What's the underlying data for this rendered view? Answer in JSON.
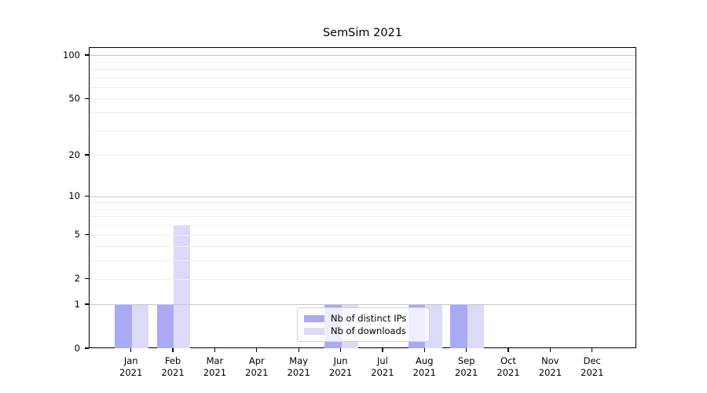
{
  "title": "SemSim 2021",
  "chart_data": {
    "type": "bar",
    "title": "SemSim 2021",
    "categories": [
      "Jan",
      "Feb",
      "Mar",
      "Apr",
      "May",
      "Jun",
      "Jul",
      "Aug",
      "Sep",
      "Oct",
      "Nov",
      "Dec"
    ],
    "category_subline": "2021",
    "series": [
      {
        "name": "Nb of distinct IPs",
        "color": "#a9a9f4",
        "values": [
          1,
          1,
          0,
          0,
          0,
          1,
          0,
          1,
          1,
          0,
          0,
          0
        ]
      },
      {
        "name": "Nb of downloads",
        "color": "#dbdbf9",
        "values": [
          1,
          6,
          0,
          0,
          0,
          1,
          0,
          1,
          1,
          0,
          0,
          0
        ]
      }
    ],
    "xlabel": "",
    "ylabel": "",
    "yscale": "log1p",
    "ylim": [
      0,
      113
    ],
    "ytick_labels": [
      "0",
      "1",
      "2",
      "5",
      "10",
      "20",
      "50",
      "100"
    ],
    "ytick_values": [
      0,
      1,
      2,
      5,
      10,
      20,
      50,
      100
    ],
    "major_gridlines": [
      1,
      10,
      100
    ],
    "minor_gridlines": [
      2,
      3,
      4,
      5,
      6,
      7,
      8,
      9,
      20,
      30,
      40,
      50,
      60,
      70,
      80,
      90
    ],
    "grid": true,
    "legend_position": "lower center",
    "colors": {
      "bar_distinct_ips": "#a9a9f4",
      "bar_downloads": "#dbdbf9",
      "grid_major": "#c8c8c8",
      "grid_minor": "#ededed",
      "axis": "#000000",
      "legend_border": "#d2d2d2"
    }
  }
}
